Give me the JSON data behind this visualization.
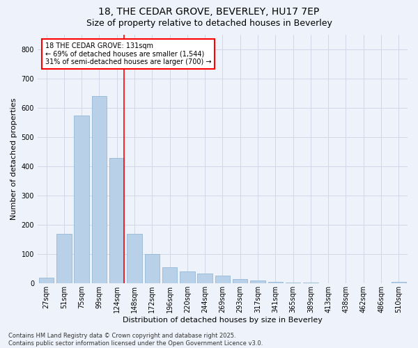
{
  "title1": "18, THE CEDAR GROVE, BEVERLEY, HU17 7EP",
  "title2": "Size of property relative to detached houses in Beverley",
  "xlabel": "Distribution of detached houses by size in Beverley",
  "ylabel": "Number of detached properties",
  "categories": [
    "27sqm",
    "51sqm",
    "75sqm",
    "99sqm",
    "124sqm",
    "148sqm",
    "172sqm",
    "196sqm",
    "220sqm",
    "244sqm",
    "269sqm",
    "293sqm",
    "317sqm",
    "341sqm",
    "365sqm",
    "389sqm",
    "413sqm",
    "438sqm",
    "462sqm",
    "486sqm",
    "510sqm"
  ],
  "values": [
    20,
    170,
    575,
    640,
    430,
    170,
    100,
    55,
    40,
    35,
    28,
    15,
    10,
    5,
    3,
    2,
    1,
    1,
    0,
    0,
    5
  ],
  "bar_color": "#b8d0e8",
  "bar_edge_color": "#8ab0d0",
  "vline_x_idx": 4,
  "vline_color": "red",
  "annotation_text": "18 THE CEDAR GROVE: 131sqm\n← 69% of detached houses are smaller (1,544)\n31% of semi-detached houses are larger (700) →",
  "annotation_box_color": "red",
  "annotation_fill": "white",
  "ylim": [
    0,
    850
  ],
  "yticks": [
    0,
    100,
    200,
    300,
    400,
    500,
    600,
    700,
    800
  ],
  "grid_color": "#d0d8e8",
  "bg_color": "#eef2fa",
  "footer": "Contains HM Land Registry data © Crown copyright and database right 2025.\nContains public sector information licensed under the Open Government Licence v3.0.",
  "title_fontsize": 10,
  "subtitle_fontsize": 9,
  "tick_fontsize": 7,
  "label_fontsize": 8,
  "annotation_fontsize": 7,
  "footer_fontsize": 6
}
